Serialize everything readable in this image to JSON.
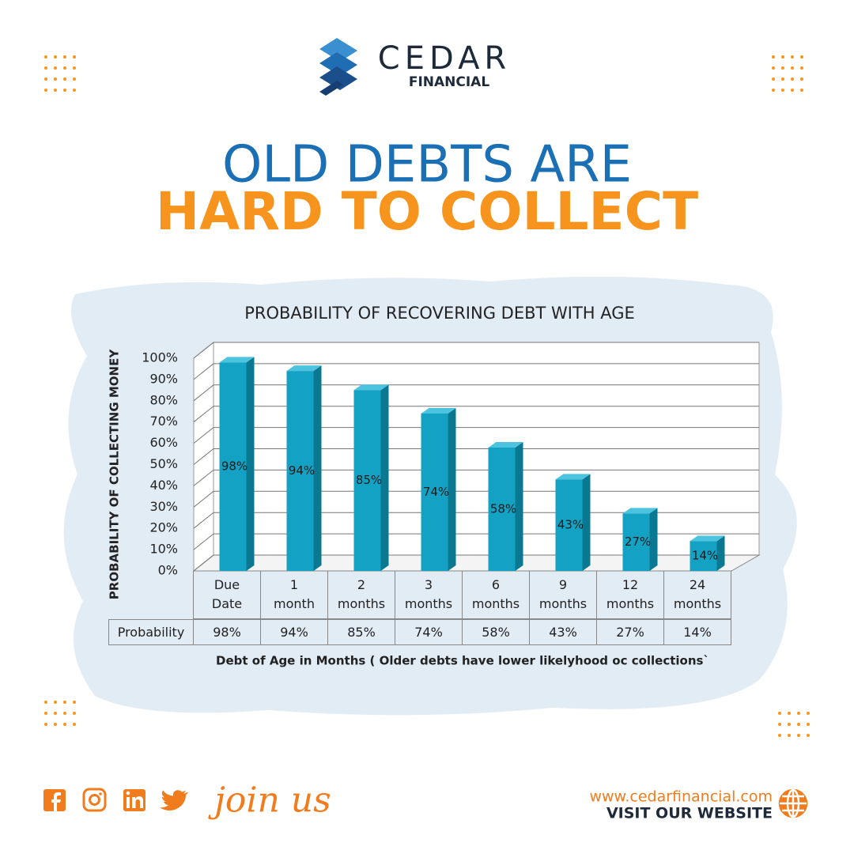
{
  "header": {
    "brand": "CEDAR",
    "brand_sub": "FINANCIAL"
  },
  "headline": {
    "line1": "OLD DEBTS ARE",
    "line2": "HARD TO COLLECT"
  },
  "chart_data": {
    "type": "bar",
    "title": "PROBABILITY OF RECOVERING DEBT WITH AGE",
    "y_label": "PROBABILITY OF COLLECTING MONEY",
    "x_label": "Debt of Age in Months ( Older debts have lower likelyhood oc collections`",
    "categories": [
      "Due Date",
      "1 month",
      "2 months",
      "3 months",
      "6 months",
      "9 months",
      "12 months",
      "24 months"
    ],
    "values": [
      98,
      94,
      85,
      74,
      58,
      43,
      27,
      14
    ],
    "value_labels": [
      "98%",
      "94%",
      "85%",
      "74%",
      "58%",
      "43%",
      "27%",
      "14%"
    ],
    "color": "#14a2c4",
    "table_row_label": "Probability",
    "ylim": [
      0,
      100
    ],
    "yticks": [
      {
        "value": 0,
        "label": "0%"
      },
      {
        "value": 10,
        "label": "10%"
      },
      {
        "value": 20,
        "label": "20%"
      },
      {
        "value": 30,
        "label": "30%"
      },
      {
        "value": 40,
        "label": "40%"
      },
      {
        "value": 50,
        "label": "50%"
      },
      {
        "value": 60,
        "label": "60%"
      },
      {
        "value": 70,
        "label": "70%"
      },
      {
        "value": 80,
        "label": "80%"
      },
      {
        "value": 90,
        "label": "90%"
      },
      {
        "value": 100,
        "label": "100%"
      }
    ],
    "grid": true
  },
  "footer": {
    "join": "join us",
    "url": "www.cedarfinancial.com",
    "cta": "VISIT OUR WEBSITE"
  }
}
